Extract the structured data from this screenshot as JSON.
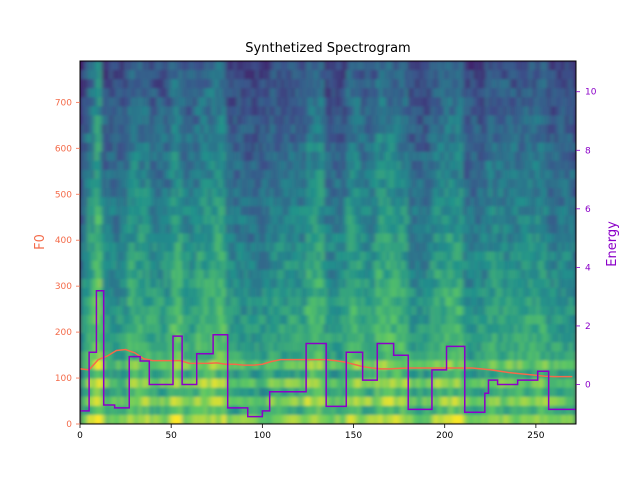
{
  "chart_data": {
    "type": "line",
    "title": "Synthetized Spectrogram",
    "xlabel": "",
    "ylabel_left": "F0",
    "ylabel_right": "Energy",
    "xlim": [
      0,
      272
    ],
    "ylim_left": [
      0,
      790
    ],
    "ylim_right": [
      -1.35,
      11.05
    ],
    "x_ticks": [
      0,
      50,
      100,
      150,
      200,
      250
    ],
    "y_left_ticks": [
      0,
      100,
      200,
      300,
      400,
      500,
      600,
      700
    ],
    "y_right_ticks": [
      0,
      2,
      4,
      6,
      8,
      10
    ],
    "colors": {
      "f0": "#f46b4a",
      "energy": "#8b00c8",
      "spec_low": "#440154",
      "spec_mid": "#21918c",
      "spec_high": "#fde725"
    },
    "background": "mel spectrogram (viridis colormap)",
    "series": [
      {
        "name": "F0",
        "axis": "left",
        "color": "#f46b4a",
        "x": [
          0,
          5,
          10,
          15,
          20,
          25,
          30,
          35,
          40,
          45,
          50,
          55,
          60,
          65,
          70,
          75,
          80,
          85,
          90,
          95,
          100,
          105,
          110,
          115,
          120,
          125,
          130,
          135,
          140,
          145,
          150,
          155,
          160,
          165,
          170,
          175,
          180,
          185,
          190,
          195,
          200,
          205,
          210,
          215,
          220,
          225,
          230,
          235,
          240,
          245,
          250,
          255,
          260,
          265,
          270
        ],
        "values": [
          120,
          118,
          140,
          148,
          160,
          162,
          155,
          142,
          138,
          138,
          138,
          138,
          132,
          132,
          132,
          133,
          130,
          130,
          128,
          128,
          130,
          136,
          140,
          140,
          140,
          140,
          140,
          140,
          138,
          135,
          130,
          125,
          122,
          120,
          120,
          121,
          122,
          122,
          122,
          122,
          122,
          122,
          122,
          122,
          120,
          118,
          115,
          112,
          110,
          108,
          106,
          104,
          103,
          103,
          103
        ]
      },
      {
        "name": "Energy",
        "axis": "right",
        "color": "#8b00c8",
        "steps": [
          [
            0,
            -0.9
          ],
          [
            5,
            1.1
          ],
          [
            9,
            3.2
          ],
          [
            13,
            -0.7
          ],
          [
            19,
            -0.8
          ],
          [
            27,
            0.95
          ],
          [
            33,
            0.8
          ],
          [
            38,
            0.0
          ],
          [
            51,
            1.65
          ],
          [
            56,
            0.0
          ],
          [
            64,
            1.05
          ],
          [
            73,
            1.7
          ],
          [
            81,
            -0.8
          ],
          [
            92,
            -1.1
          ],
          [
            100,
            -0.9
          ],
          [
            104,
            -0.25
          ],
          [
            124,
            1.4
          ],
          [
            135,
            -0.75
          ],
          [
            146,
            1.1
          ],
          [
            155,
            0.15
          ],
          [
            163,
            1.4
          ],
          [
            172,
            1.0
          ],
          [
            180,
            -0.85
          ],
          [
            193,
            0.5
          ],
          [
            201,
            1.3
          ],
          [
            211,
            -0.95
          ],
          [
            222,
            -0.3
          ],
          [
            224,
            0.15
          ],
          [
            229,
            0.0
          ],
          [
            240,
            0.15
          ],
          [
            251,
            0.45
          ],
          [
            257,
            -0.85
          ],
          [
            272,
            -0.85
          ]
        ]
      }
    ]
  }
}
